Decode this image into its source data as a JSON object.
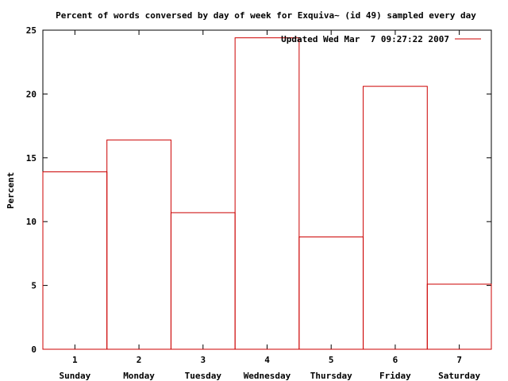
{
  "chart_data": {
    "type": "bar",
    "title": "Percent of words conversed by day of week for Exquiva~ (id 49) sampled every day",
    "ylabel": "Percent",
    "xlabel": "",
    "x_ticks": [
      "1",
      "2",
      "3",
      "4",
      "5",
      "6",
      "7"
    ],
    "categories": [
      "Sunday",
      "Monday",
      "Tuesday",
      "Wednesday",
      "Thursday",
      "Friday",
      "Saturday"
    ],
    "series": [
      {
        "name": "Updated Wed Mar  7 09:27:22 2007",
        "values": [
          13.9,
          16.4,
          10.7,
          24.4,
          8.8,
          20.6,
          5.1
        ]
      }
    ],
    "ylim": [
      0,
      25
    ],
    "y_ticks": [
      "0",
      "5",
      "10",
      "15",
      "20",
      "25"
    ],
    "style": "histeps",
    "grid": false,
    "legend_position": "top-right",
    "line_color": "#cc0000"
  }
}
